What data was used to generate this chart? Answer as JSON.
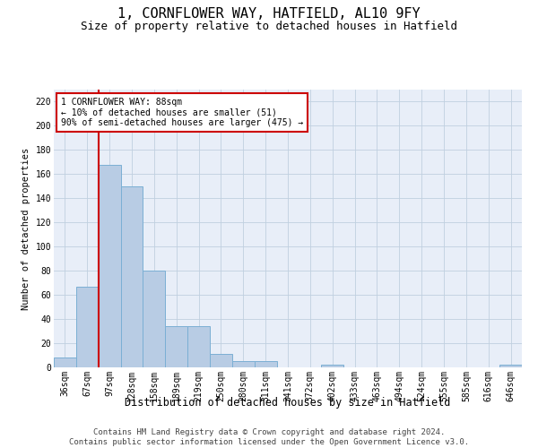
{
  "title1": "1, CORNFLOWER WAY, HATFIELD, AL10 9FY",
  "title2": "Size of property relative to detached houses in Hatfield",
  "xlabel": "Distribution of detached houses by size in Hatfield",
  "ylabel": "Number of detached properties",
  "categories": [
    "36sqm",
    "67sqm",
    "97sqm",
    "128sqm",
    "158sqm",
    "189sqm",
    "219sqm",
    "250sqm",
    "280sqm",
    "311sqm",
    "341sqm",
    "372sqm",
    "402sqm",
    "433sqm",
    "463sqm",
    "494sqm",
    "524sqm",
    "555sqm",
    "585sqm",
    "616sqm",
    "646sqm"
  ],
  "values": [
    8,
    67,
    168,
    150,
    80,
    34,
    34,
    11,
    5,
    5,
    0,
    0,
    2,
    0,
    0,
    0,
    0,
    0,
    0,
    0,
    2
  ],
  "bar_color": "#b8cce4",
  "bar_edge_color": "#7bafd4",
  "vline_color": "#cc0000",
  "vline_x": 1.5,
  "annotation_text": "1 CORNFLOWER WAY: 88sqm\n← 10% of detached houses are smaller (51)\n90% of semi-detached houses are larger (475) →",
  "annotation_box_color": "white",
  "annotation_box_edge_color": "#cc0000",
  "ylim": [
    0,
    230
  ],
  "yticks": [
    0,
    20,
    40,
    60,
    80,
    100,
    120,
    140,
    160,
    180,
    200,
    220
  ],
  "grid_color": "#c0d0e0",
  "background_color": "#e8eef8",
  "footer_text": "Contains HM Land Registry data © Crown copyright and database right 2024.\nContains public sector information licensed under the Open Government Licence v3.0.",
  "title1_fontsize": 11,
  "title2_fontsize": 9,
  "xlabel_fontsize": 8.5,
  "ylabel_fontsize": 7.5,
  "annot_fontsize": 7,
  "tick_fontsize": 7,
  "footer_fontsize": 6.5
}
